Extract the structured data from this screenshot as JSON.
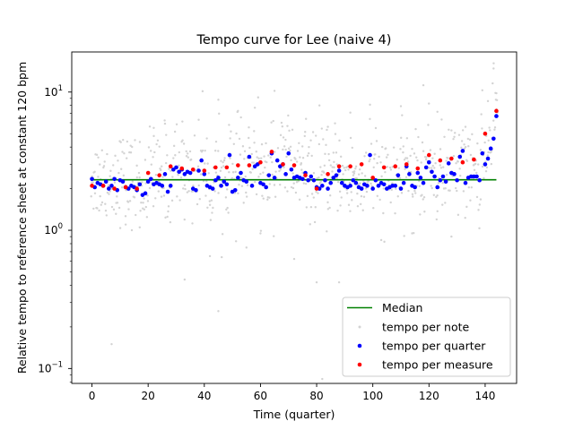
{
  "chart_data": {
    "type": "scatter",
    "title": "Tempo curve for Lee (naive 4)",
    "xlabel": "Time (quarter)",
    "ylabel": "Relative tempo to reference sheet at constant 120 bpm",
    "xlim": [
      -7.2,
      151.2
    ],
    "ylim": [
      0.078,
      19.5
    ],
    "yscale": "log",
    "grid": false,
    "legend_position": "lower-right",
    "x_ticks": [
      {
        "value": 0,
        "label": "0"
      },
      {
        "value": 20,
        "label": "20"
      },
      {
        "value": 40,
        "label": "40"
      },
      {
        "value": 60,
        "label": "60"
      },
      {
        "value": 80,
        "label": "80"
      },
      {
        "value": 100,
        "label": "100"
      },
      {
        "value": 120,
        "label": "120"
      },
      {
        "value": 140,
        "label": "140"
      }
    ],
    "y_ticks": [
      {
        "value": 0.1,
        "base": "10",
        "exp": "−1"
      },
      {
        "value": 1,
        "base": "10",
        "exp": "0"
      },
      {
        "value": 10,
        "base": "10",
        "exp": "1"
      }
    ],
    "colors": {
      "median": "#008000",
      "note": "#d3d3d3",
      "quarter": "#0000ff",
      "measure": "#ff0000"
    },
    "median": {
      "name": "Median",
      "value": 2.32,
      "x_range": [
        0,
        144
      ]
    },
    "series": [
      {
        "name": "tempo per note",
        "color": "#d3d3d3",
        "base_curve": "quarter",
        "note_spread_log10": 0.16,
        "notes_per_quarter": 5,
        "outliers": [
          [
            7,
            0.15
          ],
          [
            12,
            1.1
          ],
          [
            17,
            1.05
          ],
          [
            22,
            5.5
          ],
          [
            26,
            5.9
          ],
          [
            33,
            0.44
          ],
          [
            38,
            6.3
          ],
          [
            42,
            0.65
          ],
          [
            45,
            0.26
          ],
          [
            45,
            8.8
          ],
          [
            52,
            7.3
          ],
          [
            55,
            0.75
          ],
          [
            58,
            7.7
          ],
          [
            60,
            0.95
          ],
          [
            65,
            10.2
          ],
          [
            72,
            0.62
          ],
          [
            80,
            0.42
          ],
          [
            81,
            8.0
          ],
          [
            82,
            0.084
          ],
          [
            84,
            5.6
          ],
          [
            88,
            0.42
          ],
          [
            92,
            7.1
          ],
          [
            99,
            8.1
          ],
          [
            103,
            0.85
          ],
          [
            110,
            7.9
          ],
          [
            114,
            0.95
          ],
          [
            118,
            11.2
          ],
          [
            123,
            7.2
          ],
          [
            128,
            0.9
          ],
          [
            133,
            5.6
          ],
          [
            139,
            10.3
          ],
          [
            141,
            8.6
          ],
          [
            143,
            14.8
          ],
          [
            144,
            9.8
          ]
        ]
      },
      {
        "name": "tempo per quarter",
        "color": "#0000ff",
        "x": [
          0,
          1,
          2,
          3,
          4,
          5,
          6,
          7,
          8,
          9,
          10,
          11,
          12,
          13,
          14,
          15,
          16,
          17,
          18,
          19,
          20,
          21,
          22,
          23,
          24,
          25,
          26,
          27,
          28,
          29,
          30,
          31,
          32,
          33,
          34,
          35,
          36,
          37,
          38,
          39,
          40,
          41,
          42,
          43,
          44,
          45,
          46,
          47,
          48,
          49,
          50,
          51,
          52,
          53,
          54,
          55,
          56,
          57,
          58,
          59,
          60,
          61,
          62,
          63,
          64,
          65,
          66,
          67,
          68,
          69,
          70,
          71,
          72,
          73,
          74,
          75,
          76,
          77,
          78,
          79,
          80,
          81,
          82,
          83,
          84,
          85,
          86,
          87,
          88,
          89,
          90,
          91,
          92,
          93,
          94,
          95,
          96,
          97,
          98,
          99,
          100,
          101,
          102,
          103,
          104,
          105,
          106,
          107,
          108,
          109,
          110,
          111,
          112,
          113,
          114,
          115,
          116,
          117,
          118,
          119,
          120,
          121,
          122,
          123,
          124,
          125,
          126,
          127,
          128,
          129,
          130,
          131,
          132,
          133,
          134,
          135,
          136,
          137,
          138,
          139,
          140,
          141,
          142,
          143,
          144
        ],
        "values": [
          2.35,
          2.05,
          2.2,
          2.15,
          2.1,
          2.25,
          2.0,
          2.1,
          2.35,
          1.95,
          2.3,
          2.25,
          2.05,
          2.0,
          2.1,
          2.05,
          1.95,
          2.15,
          1.8,
          1.85,
          2.25,
          2.35,
          2.15,
          2.2,
          2.15,
          2.1,
          2.55,
          1.9,
          2.1,
          2.75,
          2.85,
          2.65,
          2.75,
          2.55,
          2.65,
          2.6,
          2.0,
          1.95,
          2.7,
          3.2,
          2.55,
          2.1,
          2.05,
          2.0,
          2.3,
          2.4,
          2.1,
          2.25,
          2.15,
          3.5,
          1.9,
          1.95,
          2.4,
          2.6,
          2.3,
          2.25,
          3.4,
          2.1,
          2.9,
          3.0,
          2.2,
          2.15,
          2.05,
          2.5,
          3.6,
          2.4,
          3.2,
          2.9,
          3.0,
          2.55,
          3.6,
          2.75,
          2.4,
          2.45,
          2.4,
          2.35,
          2.6,
          2.3,
          2.45,
          2.3,
          2.05,
          2.0,
          2.1,
          2.3,
          2.0,
          2.2,
          2.4,
          2.5,
          2.7,
          2.2,
          2.1,
          2.05,
          2.1,
          2.3,
          2.2,
          2.05,
          2.0,
          2.15,
          2.1,
          3.5,
          2.0,
          2.3,
          2.1,
          2.2,
          2.15,
          2.0,
          2.05,
          2.1,
          2.1,
          2.5,
          2.0,
          2.2,
          2.9,
          2.55,
          2.1,
          2.05,
          2.6,
          2.4,
          2.2,
          2.85,
          3.1,
          2.65,
          2.45,
          2.05,
          2.3,
          2.45,
          2.25,
          3.05,
          2.6,
          2.55,
          2.3,
          3.4,
          3.75,
          2.2,
          2.4,
          2.45,
          2.45,
          2.45,
          2.3,
          3.6,
          3.0,
          3.3,
          3.9,
          4.6,
          6.7
        ]
      },
      {
        "name": "tempo per measure",
        "color": "#ff0000",
        "x": [
          0,
          4,
          8,
          12,
          16,
          20,
          24,
          28,
          32,
          36,
          40,
          44,
          48,
          52,
          56,
          60,
          64,
          68,
          72,
          76,
          80,
          84,
          88,
          92,
          96,
          100,
          104,
          108,
          112,
          116,
          120,
          124,
          128,
          132,
          136,
          140,
          144
        ],
        "values": [
          2.1,
          2.1,
          2.0,
          2.05,
          2.0,
          2.6,
          2.5,
          2.9,
          2.8,
          2.75,
          2.7,
          2.85,
          2.85,
          2.95,
          2.95,
          3.1,
          3.7,
          3.0,
          2.95,
          2.5,
          2.0,
          2.55,
          2.9,
          2.9,
          3.0,
          2.4,
          2.85,
          2.9,
          3.0,
          2.8,
          3.5,
          3.2,
          3.3,
          3.1,
          3.25,
          5.0,
          7.3
        ]
      }
    ]
  }
}
